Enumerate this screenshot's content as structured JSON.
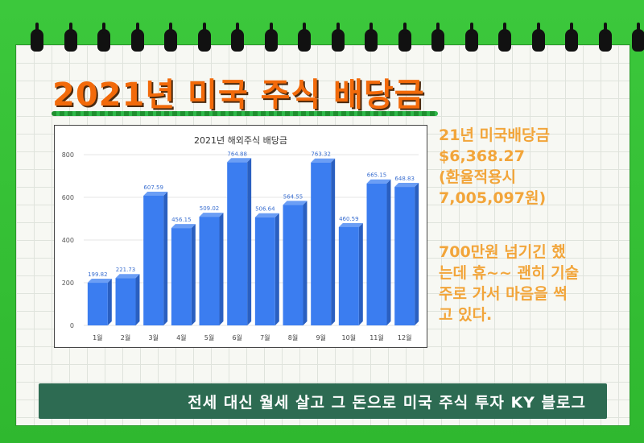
{
  "title": "2021년 미국 주식 배당금",
  "chart_data": {
    "type": "bar",
    "title": "2021년 해외주식 배당금",
    "categories": [
      "1월",
      "2월",
      "3월",
      "4월",
      "5월",
      "6월",
      "7월",
      "8월",
      "9월",
      "10월",
      "11월",
      "12월"
    ],
    "values": [
      199.82,
      221.73,
      607.59,
      456.15,
      509.02,
      764.88,
      506.64,
      564.55,
      763.32,
      460.59,
      665.15,
      648.83
    ],
    "value_labels": [
      "199.82",
      "221.73",
      "607.59",
      "456.15",
      "509.02",
      "764.88",
      "506.64",
      "564.55",
      "763.32",
      "460.59",
      "665.15",
      "648.83"
    ],
    "ylim": [
      0,
      800
    ],
    "yticks": [
      "0",
      "200",
      "400",
      "600",
      "800"
    ],
    "bar_color": "#3b7df0",
    "grid": true
  },
  "summary": {
    "line1": "21년 미국배당금",
    "line2": "$6,368.27",
    "line3": "(환율적용시",
    "line4": "7,005,097원)"
  },
  "note": {
    "line1": "700만원 넘기긴 했",
    "line2": "는데 휴~~ 괜히 기술",
    "line3": "주로 가서 마음을 썩",
    "line4": "고 있다."
  },
  "footer": "전세 대신 월세 살고 그 돈으로 미국 주식 투자 KY 블로그",
  "colors": {
    "frame": "#2fb82f",
    "title": "#f26a0a",
    "side_text": "#f2a53a",
    "footer_bg": "#2d6b52"
  }
}
